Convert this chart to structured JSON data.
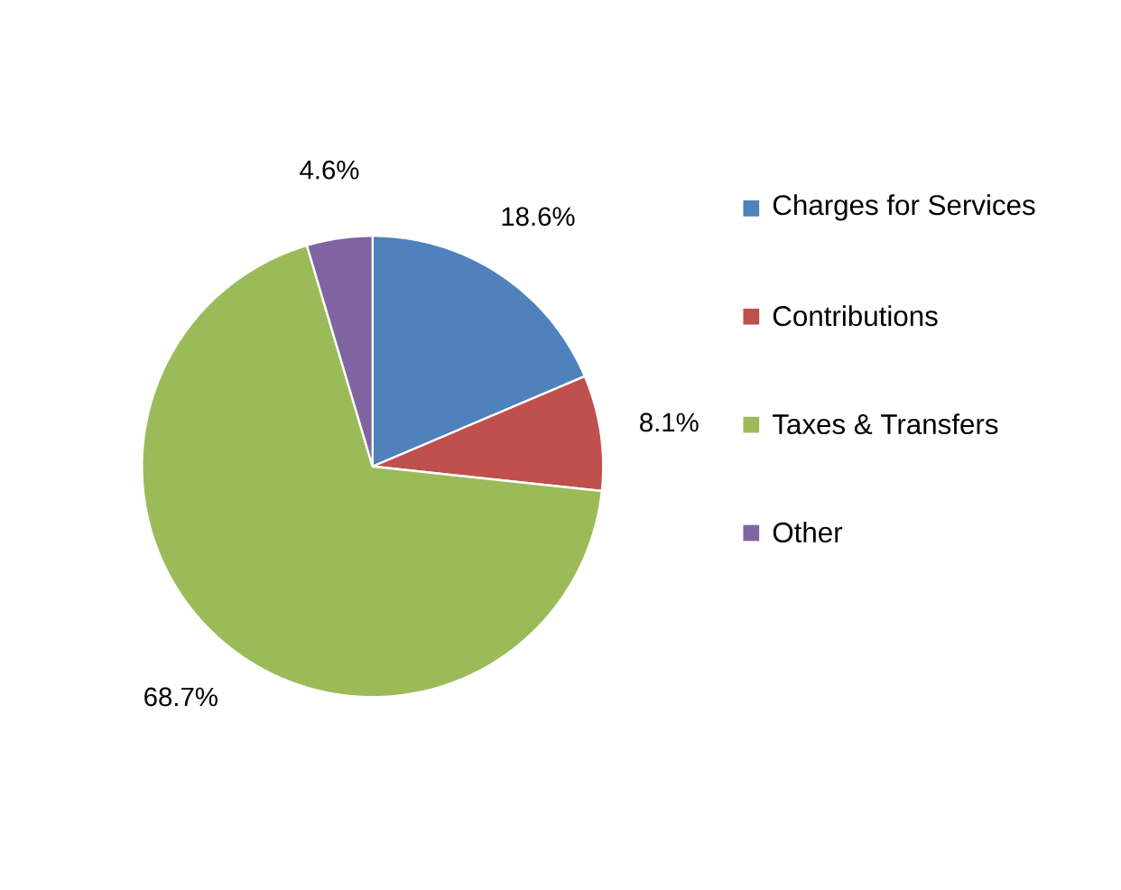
{
  "chart_data": {
    "type": "pie",
    "categories": [
      "Charges for Services",
      "Contributions",
      "Taxes & Transfers",
      "Other"
    ],
    "values": [
      18.6,
      8.1,
      68.7,
      4.6
    ],
    "colors": [
      "#4f81bd",
      "#c0504d",
      "#9bbb59",
      "#8064a2"
    ],
    "value_labels": [
      "18.6%",
      "8.1%",
      "68.7%",
      "4.6%"
    ],
    "legend": "right"
  }
}
